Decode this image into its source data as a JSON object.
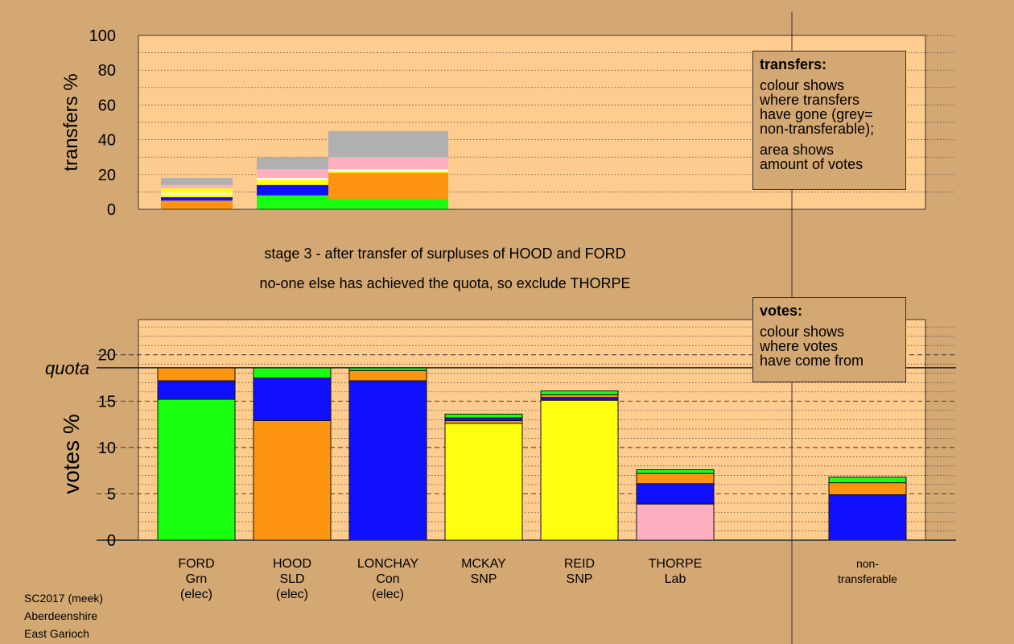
{
  "chart_data": [
    {
      "type": "bar",
      "ylabel": "transfers %",
      "ylim": [
        0,
        100
      ],
      "yticks": [
        0,
        20,
        40,
        60,
        80,
        100
      ],
      "grid": "dotted",
      "bars": [
        {
          "segments": [
            {
              "color": "#FF9410",
              "value": 5
            },
            {
              "color": "#1010FF",
              "value": 2
            },
            {
              "color": "#FFFF10",
              "value": 1.5
            },
            {
              "color": "#FFFFFF",
              "value": 1
            },
            {
              "color": "#FFFF10",
              "value": 2.5
            },
            {
              "color": "#FFB0C0",
              "value": 2
            },
            {
              "color": "#B0B0B0",
              "value": 4
            }
          ]
        },
        {
          "segments": [
            {
              "color": "#18FF10",
              "value": 8
            },
            {
              "color": "#1010FF",
              "value": 6
            },
            {
              "color": "#FFFF10",
              "value": 3
            },
            {
              "color": "#FFFFFF",
              "value": 1
            },
            {
              "color": "#FFB0C0",
              "value": 5
            },
            {
              "color": "#B0B0B0",
              "value": 7
            }
          ]
        },
        {
          "segments": [
            {
              "color": "#18FF10",
              "value": 6
            },
            {
              "color": "#FF9410",
              "value": 15
            },
            {
              "color": "#FFFF10",
              "value": 1
            },
            {
              "color": "#FFFFFF",
              "value": 1
            },
            {
              "color": "#FFB0C0",
              "value": 7
            },
            {
              "color": "#B0B0B0",
              "value": 15
            }
          ]
        }
      ]
    },
    {
      "type": "bar",
      "ylabel": "votes %",
      "ylim": [
        0,
        23.8
      ],
      "yticks": [
        0,
        5,
        10,
        15,
        20
      ],
      "quota": 18.6,
      "quota_label": "quota",
      "categories": [
        {
          "name": "FORD",
          "party": "Grn",
          "status": "(elec)"
        },
        {
          "name": "HOOD",
          "party": "SLD",
          "status": "(elec)"
        },
        {
          "name": "LONCHAY",
          "party": "Con",
          "status": "(elec)"
        },
        {
          "name": "MCKAY",
          "party": "SNP",
          "status": ""
        },
        {
          "name": "REID",
          "party": "SNP",
          "status": ""
        },
        {
          "name": "THORPE",
          "party": "Lab",
          "status": ""
        },
        {
          "name": "non-",
          "party": "transferable",
          "status": ""
        }
      ],
      "bars": [
        {
          "segments": [
            {
              "color": "#18FF10",
              "value": 15.2
            },
            {
              "color": "#1010FF",
              "value": 2.0
            },
            {
              "color": "#FF9410",
              "value": 1.4
            }
          ]
        },
        {
          "segments": [
            {
              "color": "#FF9410",
              "value": 12.9
            },
            {
              "color": "#1010FF",
              "value": 4.6
            },
            {
              "color": "#18FF10",
              "value": 1.1
            }
          ]
        },
        {
          "segments": [
            {
              "color": "#1010FF",
              "value": 17.2
            },
            {
              "color": "#FF9410",
              "value": 1.1
            },
            {
              "color": "#18FF10",
              "value": 0.3
            }
          ]
        },
        {
          "segments": [
            {
              "color": "#FFFF10",
              "value": 12.6
            },
            {
              "color": "#FF9410",
              "value": 0.3
            },
            {
              "color": "#1010FF",
              "value": 0.3
            },
            {
              "color": "#18FF10",
              "value": 0.4
            }
          ]
        },
        {
          "segments": [
            {
              "color": "#FFFF10",
              "value": 15.1
            },
            {
              "color": "#1010FF",
              "value": 0.3
            },
            {
              "color": "#FF9410",
              "value": 0.3
            },
            {
              "color": "#18FF10",
              "value": 0.4
            }
          ]
        },
        {
          "segments": [
            {
              "color": "#FFB0C0",
              "value": 3.9
            },
            {
              "color": "#1010FF",
              "value": 2.2
            },
            {
              "color": "#FF9410",
              "value": 1.1
            },
            {
              "color": "#18FF10",
              "value": 0.4
            }
          ]
        },
        {
          "segments": [
            {
              "color": "#1010FF",
              "value": 4.9
            },
            {
              "color": "#FF9410",
              "value": 1.3
            },
            {
              "color": "#18FF10",
              "value": 0.6
            }
          ]
        }
      ]
    }
  ],
  "stage_line": "stage 3 - after transfer of surpluses of HOOD and FORD",
  "action_line": "no-one else has achieved the quota, so exclude THORPE",
  "transfers_legend": {
    "title": "transfers:",
    "line1": "colour shows",
    "line2": "where transfers",
    "line3": "have gone (grey=",
    "line4": "non-transferable);",
    "line5": "area shows",
    "line6": "amount of votes"
  },
  "votes_legend": {
    "title": "votes:",
    "line1": "colour shows",
    "line2": "where votes",
    "line3": "have come from"
  },
  "footer": {
    "election": "SC2017 (meek)",
    "council": "Aberdeenshire",
    "ward": "East Garioch"
  },
  "colors": {
    "background": "#D4A873",
    "panel": "#FFCC8F"
  }
}
